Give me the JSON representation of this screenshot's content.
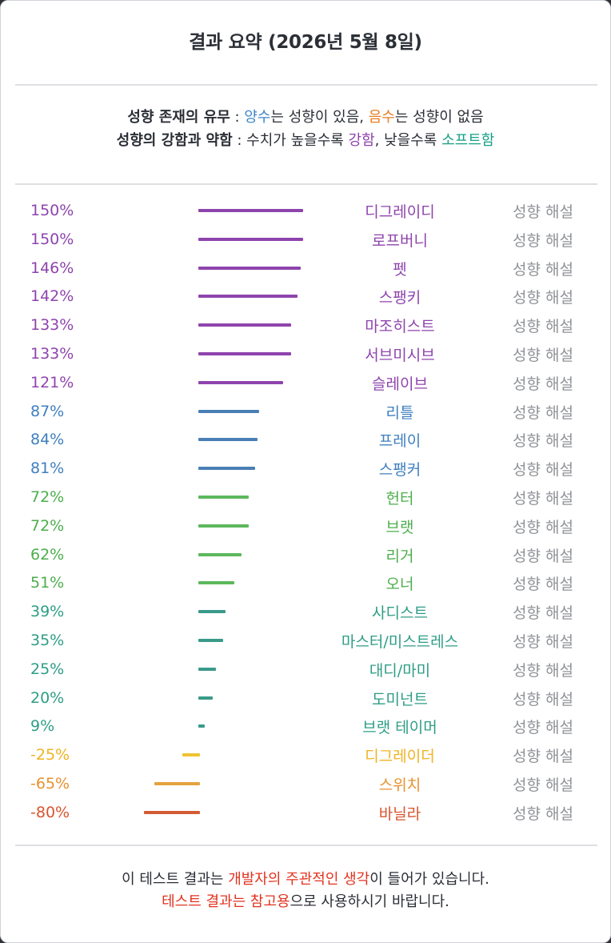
{
  "title": "결과 요약 (2026년 5월 8일)",
  "legend": {
    "line1": {
      "bold": "성향 존재의 유무",
      "sep": " : ",
      "pos": "양수",
      "mid": "는 성향이 있음, ",
      "neg": "음수",
      "end": "는 성향이 없음"
    },
    "line2": {
      "bold": "성향의 강함과 약함",
      "sep": " : 수치가 높을수록 ",
      "strong": "강함",
      "mid": ", 낮을수록 ",
      "soft": "소프트함"
    }
  },
  "colors": {
    "purple": "#8e44ad",
    "blue": "#3f86c7",
    "green": "#5cb85c",
    "teal": "#3a9a89",
    "yellow": "#f0c330",
    "orange": "#e4a23f",
    "red": "#d35c35",
    "blue_label": "#3f86c7",
    "teal_label": "#16a085"
  },
  "explain_label": "성향 해설",
  "rows": [
    {
      "pct_text": "150%",
      "value": 150,
      "name": "디그레이디",
      "color": "#8e44ad",
      "text_color": "#8e44ad"
    },
    {
      "pct_text": "150%",
      "value": 150,
      "name": "로프버니",
      "color": "#8e44ad",
      "text_color": "#8e44ad"
    },
    {
      "pct_text": "146%",
      "value": 146,
      "name": "펫",
      "color": "#8e44ad",
      "text_color": "#8e44ad"
    },
    {
      "pct_text": "142%",
      "value": 142,
      "name": "스팽키",
      "color": "#8e44ad",
      "text_color": "#8e44ad"
    },
    {
      "pct_text": "133%",
      "value": 133,
      "name": "마조히스트",
      "color": "#8e44ad",
      "text_color": "#8e44ad"
    },
    {
      "pct_text": "133%",
      "value": 133,
      "name": "서브미시브",
      "color": "#8e44ad",
      "text_color": "#8e44ad"
    },
    {
      "pct_text": "121%",
      "value": 121,
      "name": "슬레이브",
      "color": "#8e44ad",
      "text_color": "#8e44ad"
    },
    {
      "pct_text": "87%",
      "value": 87,
      "name": "리틀",
      "color": "#4a7fb5",
      "text_color": "#3f7fbf"
    },
    {
      "pct_text": "84%",
      "value": 84,
      "name": "프레이",
      "color": "#4a7fb5",
      "text_color": "#3f7fbf"
    },
    {
      "pct_text": "81%",
      "value": 81,
      "name": "스팽커",
      "color": "#4a7fb5",
      "text_color": "#3f7fbf"
    },
    {
      "pct_text": "72%",
      "value": 72,
      "name": "헌터",
      "color": "#5cb85c",
      "text_color": "#4cae4c"
    },
    {
      "pct_text": "72%",
      "value": 72,
      "name": "브랫",
      "color": "#5cb85c",
      "text_color": "#4cae4c"
    },
    {
      "pct_text": "62%",
      "value": 62,
      "name": "리거",
      "color": "#5cb85c",
      "text_color": "#4cae4c"
    },
    {
      "pct_text": "51%",
      "value": 51,
      "name": "오너",
      "color": "#5cb85c",
      "text_color": "#4cae4c"
    },
    {
      "pct_text": "39%",
      "value": 39,
      "name": "사디스트",
      "color": "#3a9a89",
      "text_color": "#2e9d86"
    },
    {
      "pct_text": "35%",
      "value": 35,
      "name": "마스터/미스트레스",
      "color": "#3a9a89",
      "text_color": "#2e9d86"
    },
    {
      "pct_text": "25%",
      "value": 25,
      "name": "대디/마미",
      "color": "#3a9a89",
      "text_color": "#2e9d86"
    },
    {
      "pct_text": "20%",
      "value": 20,
      "name": "도미넌트",
      "color": "#3a9a89",
      "text_color": "#2e9d86"
    },
    {
      "pct_text": "9%",
      "value": 9,
      "name": "브랫 테이머",
      "color": "#3a9a89",
      "text_color": "#2e9d86"
    },
    {
      "pct_text": "-25%",
      "value": -25,
      "name": "디그레이더",
      "color": "#f0c330",
      "text_color": "#f0b323"
    },
    {
      "pct_text": "-65%",
      "value": -65,
      "name": "스위치",
      "color": "#e4a23f",
      "text_color": "#e8912f"
    },
    {
      "pct_text": "-80%",
      "value": -80,
      "name": "바닐라",
      "color": "#d35c35",
      "text_color": "#d9542f"
    }
  ],
  "footer": {
    "line1_a": "이 테스트 결과는 ",
    "line1_red": "개발자의 주관적인 생각",
    "line1_b": "이 들어가 있습니다.",
    "line2_red": "테스트 결과는 참고용",
    "line2_b": "으로 사용하시기 바랍니다."
  }
}
